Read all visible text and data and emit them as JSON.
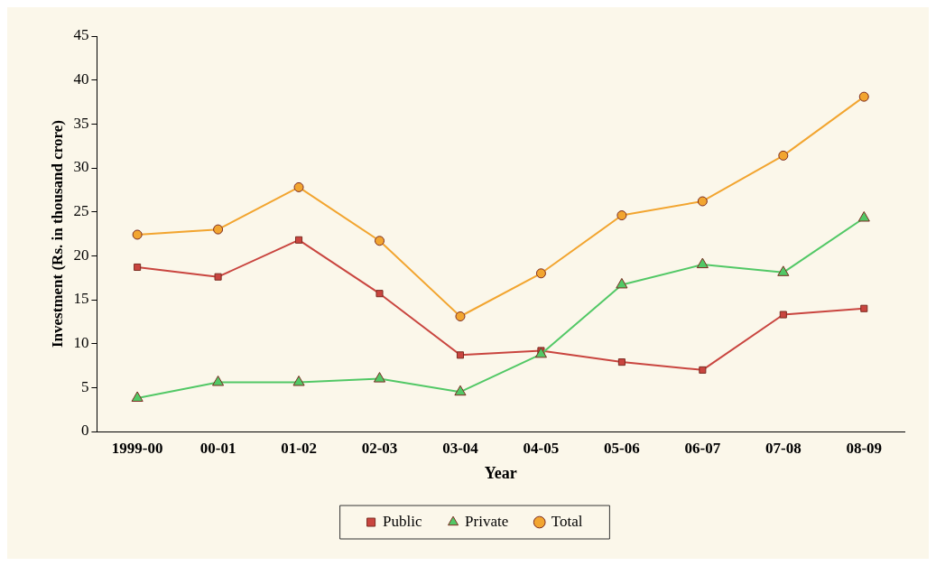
{
  "chart_data": {
    "type": "line",
    "xlabel": "Year",
    "ylabel": "Investment (Rs. in thousand crore)",
    "categories": [
      "1999-00",
      "00-01",
      "01-02",
      "02-03",
      "03-04",
      "04-05",
      "05-06",
      "06-07",
      "07-08",
      "08-09"
    ],
    "series": [
      {
        "name": "Public",
        "color": "#c9453f",
        "marker": "square",
        "values": [
          18.7,
          17.6,
          21.8,
          15.7,
          8.7,
          9.2,
          7.9,
          7.0,
          13.3,
          14.0
        ]
      },
      {
        "name": "Private",
        "color": "#52c866",
        "marker": "triangle",
        "values": [
          3.8,
          5.6,
          5.6,
          6.0,
          4.5,
          8.8,
          16.7,
          19.0,
          18.1,
          24.3
        ]
      },
      {
        "name": "Total",
        "color": "#f2a530",
        "marker": "circle",
        "values": [
          22.4,
          23.0,
          27.8,
          21.7,
          13.1,
          18.0,
          24.6,
          26.2,
          31.4,
          38.1
        ]
      }
    ],
    "ylim": [
      0,
      45
    ],
    "yticks": [
      0,
      5,
      10,
      15,
      20,
      25,
      30,
      35,
      40,
      45
    ],
    "grid": false,
    "legend": "bottom",
    "line_style": "solid"
  }
}
